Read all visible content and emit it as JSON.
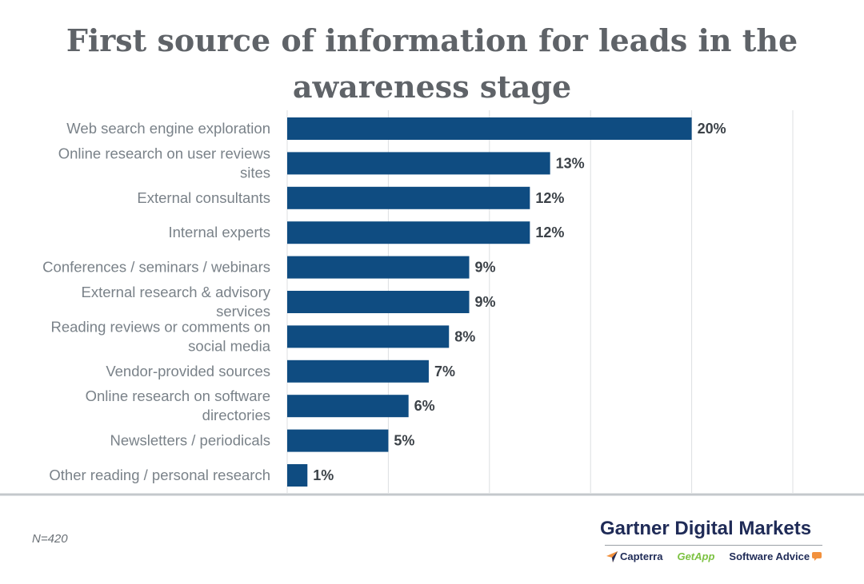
{
  "chart_data": {
    "type": "bar",
    "orientation": "horizontal",
    "title": "First source of information for leads in the\nawareness stage",
    "categories": [
      "Web search engine exploration",
      "Online research on user reviews sites",
      "External consultants",
      "Internal experts",
      "Conferences / seminars / webinars",
      "External research & advisory services",
      "Reading reviews or comments on social media",
      "Vendor-provided sources",
      "Online research on software directories",
      "Newsletters / periodicals",
      "Other reading / personal research"
    ],
    "category_lines": [
      [
        "Web search engine exploration"
      ],
      [
        "Online research on user reviews",
        "sites"
      ],
      [
        "External consultants"
      ],
      [
        "Internal experts"
      ],
      [
        "Conferences / seminars / webinars"
      ],
      [
        "External research & advisory",
        "services"
      ],
      [
        "Reading reviews or comments on",
        "social media"
      ],
      [
        "Vendor-provided sources"
      ],
      [
        "Online research on software",
        "directories"
      ],
      [
        "Newsletters / periodicals"
      ],
      [
        "Other reading / personal research"
      ]
    ],
    "values": [
      20,
      13,
      12,
      12,
      9,
      9,
      8,
      7,
      6,
      5,
      1
    ],
    "value_labels": [
      "20%",
      "13%",
      "12%",
      "12%",
      "9%",
      "9%",
      "8%",
      "7%",
      "6%",
      "5%",
      "1%"
    ],
    "xlim": [
      0,
      25
    ],
    "vertical_grid": true,
    "bar_color": "#0f4c81"
  },
  "note": "N=420",
  "branding": {
    "company": "Gartner Digital Markets",
    "brands": [
      "Capterra",
      "GetApp",
      "Software Advice"
    ],
    "capterra_color": "#1f2b57",
    "getapp_color": "#7cc242",
    "accent_color": "#f2913d"
  }
}
